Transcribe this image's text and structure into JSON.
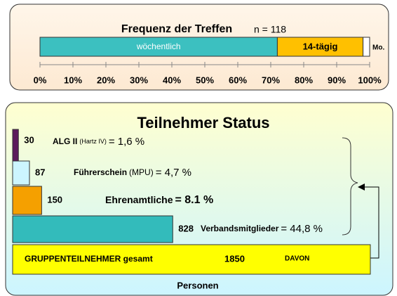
{
  "chart_data": [
    {
      "type": "stacked-bar",
      "title": "Frequenz der Treffen",
      "subtitle": "n = 118",
      "series": [
        {
          "name": "wöchentlich",
          "color": "#3cc0c0",
          "values": [
            72
          ]
        },
        {
          "name": "14-tägig",
          "color": "#ffc000",
          "values": [
            26
          ]
        },
        {
          "name": "Mo.",
          "color": "#ffffff",
          "values": [
            2
          ]
        }
      ],
      "xlim": [
        0,
        100
      ],
      "xticks": [
        {
          "value": 0,
          "label": "0%"
        },
        {
          "value": 10,
          "label": "10%"
        },
        {
          "value": 20,
          "label": "20%"
        },
        {
          "value": 30,
          "label": "30%"
        },
        {
          "value": 40,
          "label": "40%"
        },
        {
          "value": 50,
          "label": "50%"
        },
        {
          "value": 60,
          "label": "60%"
        },
        {
          "value": 70,
          "label": "70%"
        },
        {
          "value": 80,
          "label": "80%"
        },
        {
          "value": 90,
          "label": "90%"
        },
        {
          "value": 100,
          "label": "100%"
        }
      ]
    },
    {
      "type": "hbar",
      "title": "Teilnehmer Status",
      "xlabel": "Personen",
      "categories": [
        "ALG II",
        "Führerschein",
        "Ehrenamtliche",
        "Verbandsmitglieder",
        "GRUPPENTEILNEHMER gesamt"
      ],
      "category_notes": [
        "(Hartz IV)",
        "(MPU)",
        null,
        null,
        null
      ],
      "values": [
        30,
        87,
        150,
        828,
        1850
      ],
      "shares": [
        1.6,
        4.7,
        8.1,
        44.8,
        null
      ],
      "share_labels": [
        "= 1,6 %",
        "= 4,7 %",
        "= 8.1 %",
        "= 44,8 %",
        null
      ],
      "colors": [
        "#5c1a5c",
        "#ccf5ff",
        "#f5a000",
        "#33bbbb",
        "#ffff00"
      ],
      "annotation": "DAVON",
      "xlim": [
        0,
        1850
      ]
    }
  ]
}
